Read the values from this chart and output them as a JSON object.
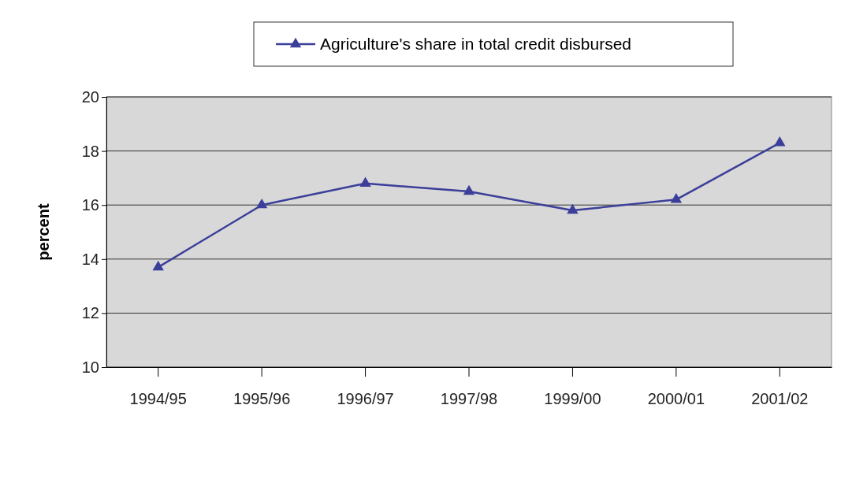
{
  "chart_data": {
    "type": "line",
    "ylabel": "percent",
    "categories": [
      "1994/95",
      "1995/96",
      "1996/97",
      "1997/98",
      "1999/00",
      "2000/01",
      "2001/02"
    ],
    "series": [
      {
        "name": "Agriculture's share in total credit disbursed",
        "color": "#3b3f99",
        "values": [
          13.7,
          16.0,
          16.8,
          16.5,
          15.8,
          16.2,
          18.3
        ]
      }
    ],
    "ylim": [
      10,
      20
    ],
    "yticks": [
      10,
      12,
      14,
      16,
      18,
      20
    ],
    "grid": "y",
    "legend": "top",
    "marker": "triangle",
    "line_style": "solid"
  }
}
